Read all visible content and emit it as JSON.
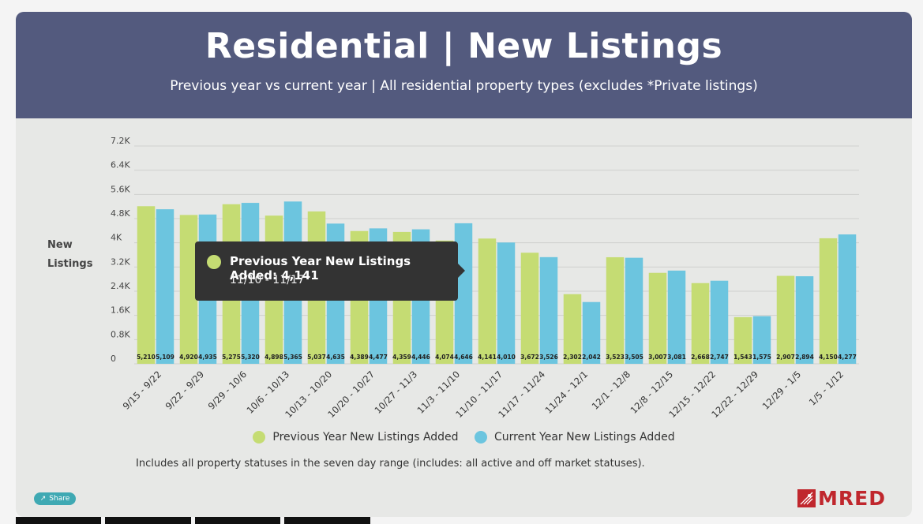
{
  "header": {
    "title": "Residential | New Listings",
    "subtitle": "Previous year vs current year | All residential property types (excludes *Private listings)"
  },
  "chart_data": {
    "type": "bar",
    "title": "Residential | New Listings",
    "ylabel_lines": [
      "New",
      "Listings"
    ],
    "ylim": [
      0,
      7200
    ],
    "yticks": [
      {
        "value": 0,
        "label": "0"
      },
      {
        "value": 800,
        "label": "0.8K"
      },
      {
        "value": 1600,
        "label": "1.6K"
      },
      {
        "value": 2400,
        "label": "2.4K"
      },
      {
        "value": 3200,
        "label": "3.2K"
      },
      {
        "value": 4000,
        "label": "4K"
      },
      {
        "value": 4800,
        "label": "4.8K"
      },
      {
        "value": 5600,
        "label": "5.6K"
      },
      {
        "value": 6400,
        "label": "6.4K"
      },
      {
        "value": 7200,
        "label": "7.2K"
      }
    ],
    "categories": [
      "9/15 - 9/22",
      "9/22 - 9/29",
      "9/29 - 10/6",
      "10/6 - 10/13",
      "10/13 - 10/20",
      "10/20 - 10/27",
      "10/27 - 11/3",
      "11/3 - 11/10",
      "11/10 - 11/17",
      "11/17 - 11/24",
      "11/24 - 12/1",
      "12/1 - 12/8",
      "12/8 - 12/15",
      "12/15 - 12/22",
      "12/22 - 12/29",
      "12/29 - 1/5",
      "1/5 - 1/12"
    ],
    "series": [
      {
        "name": "Previous Year New Listings Added",
        "color": "#c5dc73",
        "values": [
          5210,
          4920,
          5275,
          4898,
          5037,
          4389,
          4359,
          4074,
          4141,
          3672,
          2302,
          3523,
          3007,
          2668,
          1543,
          2907,
          4150
        ],
        "labels": [
          "5,210",
          "4,920",
          "5,275",
          "4,898",
          "5,037",
          "4,389",
          "4,359",
          "4,074",
          "4,141",
          "3,672",
          "2,302",
          "3,523",
          "3,007",
          "2,668",
          "1,543",
          "2,907",
          "4,150"
        ]
      },
      {
        "name": "Current Year New Listings Added",
        "color": "#6cc5df",
        "values": [
          5109,
          4935,
          5320,
          5365,
          4635,
          4477,
          4446,
          4646,
          4010,
          3526,
          2042,
          3505,
          3081,
          2747,
          1575,
          2894,
          4277
        ],
        "labels": [
          "5,109",
          "4,935",
          "5,320",
          "5,365",
          "4,635",
          "4,477",
          "4,446",
          "4,646",
          "4,010",
          "3,526",
          "2,042",
          "3,505",
          "3,081",
          "2,747",
          "1,575",
          "2,894",
          "4,277"
        ]
      }
    ],
    "grid": true,
    "legend": "bottom-center"
  },
  "tooltip": {
    "title": "Previous Year New Listings Added: 4,141",
    "subtitle": "11/10 - 11/17"
  },
  "footnote": "Includes all property statuses in the seven day range (includes: all active and off market statuses).",
  "share": {
    "label": "Share",
    "icon": "share-icon"
  },
  "logo": {
    "text": "MRED",
    "color": "#c0272d"
  }
}
